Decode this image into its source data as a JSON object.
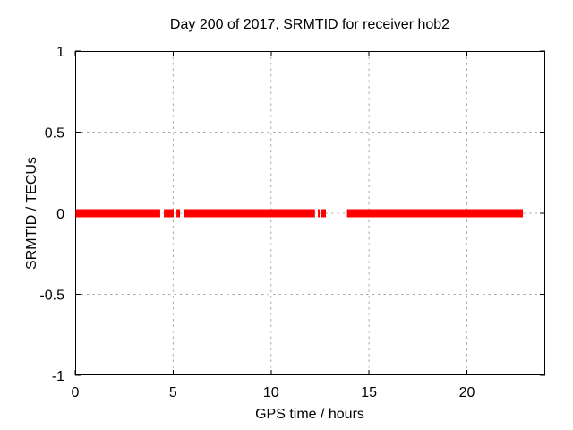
{
  "colors": {
    "data": "#ff0000",
    "grid": "#a8a8a8",
    "axis": "#000000",
    "background": "#ffffff",
    "text": "#000000"
  },
  "chart_data": {
    "type": "scatter",
    "title": "Day 200 of 2017, SRMTID for receiver hob2",
    "xlabel": "GPS time / hours",
    "ylabel": "SRMTID / TECUs",
    "xlim": [
      0,
      24
    ],
    "ylim": [
      -1,
      1
    ],
    "xticks": [
      0,
      5,
      10,
      15,
      20
    ],
    "yticks": [
      1,
      0.5,
      0,
      -0.5,
      -1
    ],
    "grid": true,
    "legend": false,
    "series": [
      {
        "name": "SRMTID",
        "color": "#ff0000",
        "marker": "square",
        "y_value": 0,
        "x_segments_hours": [
          [
            0.02,
            4.34
          ],
          [
            4.53,
            5.03
          ],
          [
            5.17,
            5.35
          ],
          [
            5.53,
            12.24
          ],
          [
            12.39,
            12.48
          ],
          [
            12.53,
            12.8
          ],
          [
            13.88,
            22.86
          ]
        ]
      }
    ]
  }
}
